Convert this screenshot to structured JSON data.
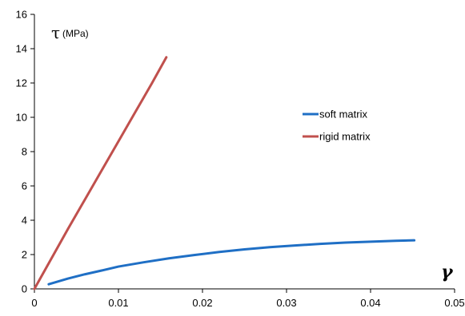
{
  "chart_data": {
    "type": "line",
    "title": "",
    "ylabel_symbol": "τ",
    "ylabel_unit": "(MPa)",
    "xlabel": "γ",
    "xlim": [
      0,
      0.05
    ],
    "ylim": [
      0,
      16
    ],
    "xticks": [
      0,
      0.01,
      0.02,
      0.03,
      0.04,
      0.05
    ],
    "xtick_labels": [
      "0",
      "0.01",
      "0.02",
      "0.03",
      "0.04",
      "0.05"
    ],
    "yticks": [
      0,
      2,
      4,
      6,
      8,
      10,
      12,
      14,
      16
    ],
    "ytick_labels": [
      "0",
      "2",
      "4",
      "6",
      "8",
      "10",
      "12",
      "14",
      "16"
    ],
    "grid": false,
    "legend_position": "right-middle",
    "series": [
      {
        "name": "soft matrix",
        "color": "#1f6fc5",
        "x": [
          0.0017,
          0.004,
          0.006,
          0.008,
          0.01,
          0.013,
          0.016,
          0.019,
          0.022,
          0.025,
          0.028,
          0.031,
          0.034,
          0.037,
          0.04,
          0.043,
          0.0452
        ],
        "y": [
          0.27,
          0.6,
          0.85,
          1.07,
          1.3,
          1.55,
          1.78,
          1.97,
          2.15,
          2.3,
          2.43,
          2.53,
          2.62,
          2.7,
          2.75,
          2.8,
          2.83
        ]
      },
      {
        "name": "rigid matrix",
        "color": "#c0504d",
        "x": [
          0,
          0.002,
          0.004,
          0.006,
          0.008,
          0.01,
          0.012,
          0.014,
          0.0157
        ],
        "y": [
          0,
          1.75,
          3.5,
          5.2,
          6.9,
          8.6,
          10.3,
          12.0,
          13.5
        ]
      }
    ]
  }
}
